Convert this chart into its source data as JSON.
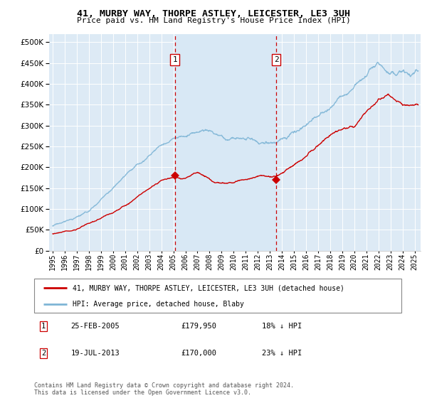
{
  "title": "41, MURBY WAY, THORPE ASTLEY, LEICESTER, LE3 3UH",
  "subtitle": "Price paid vs. HM Land Registry's House Price Index (HPI)",
  "legend_line1": "41, MURBY WAY, THORPE ASTLEY, LEICESTER, LE3 3UH (detached house)",
  "legend_line2": "HPI: Average price, detached house, Blaby",
  "annotation1_date": "25-FEB-2005",
  "annotation1_price": "£179,950",
  "annotation1_hpi": "18% ↓ HPI",
  "annotation2_date": "19-JUL-2013",
  "annotation2_price": "£170,000",
  "annotation2_hpi": "23% ↓ HPI",
  "footnote": "Contains HM Land Registry data © Crown copyright and database right 2024.\nThis data is licensed under the Open Government Licence v3.0.",
  "sale1_x": 2005.12,
  "sale1_y": 179950,
  "sale2_x": 2013.54,
  "sale2_y": 170000,
  "ylim": [
    0,
    520000
  ],
  "xlim": [
    1994.7,
    2025.5
  ],
  "hpi_color": "#7eb5d6",
  "sale_color": "#cc0000",
  "vline_color": "#cc0000",
  "span_color": "#d8e8f5",
  "background_color": "#ddeaf5",
  "yticks": [
    0,
    50000,
    100000,
    150000,
    200000,
    250000,
    300000,
    350000,
    400000,
    450000,
    500000
  ],
  "xticks": [
    1995,
    1996,
    1997,
    1998,
    1999,
    2000,
    2001,
    2002,
    2003,
    2004,
    2005,
    2006,
    2007,
    2008,
    2009,
    2010,
    2011,
    2012,
    2013,
    2014,
    2015,
    2016,
    2017,
    2018,
    2019,
    2020,
    2021,
    2022,
    2023,
    2024,
    2025
  ]
}
